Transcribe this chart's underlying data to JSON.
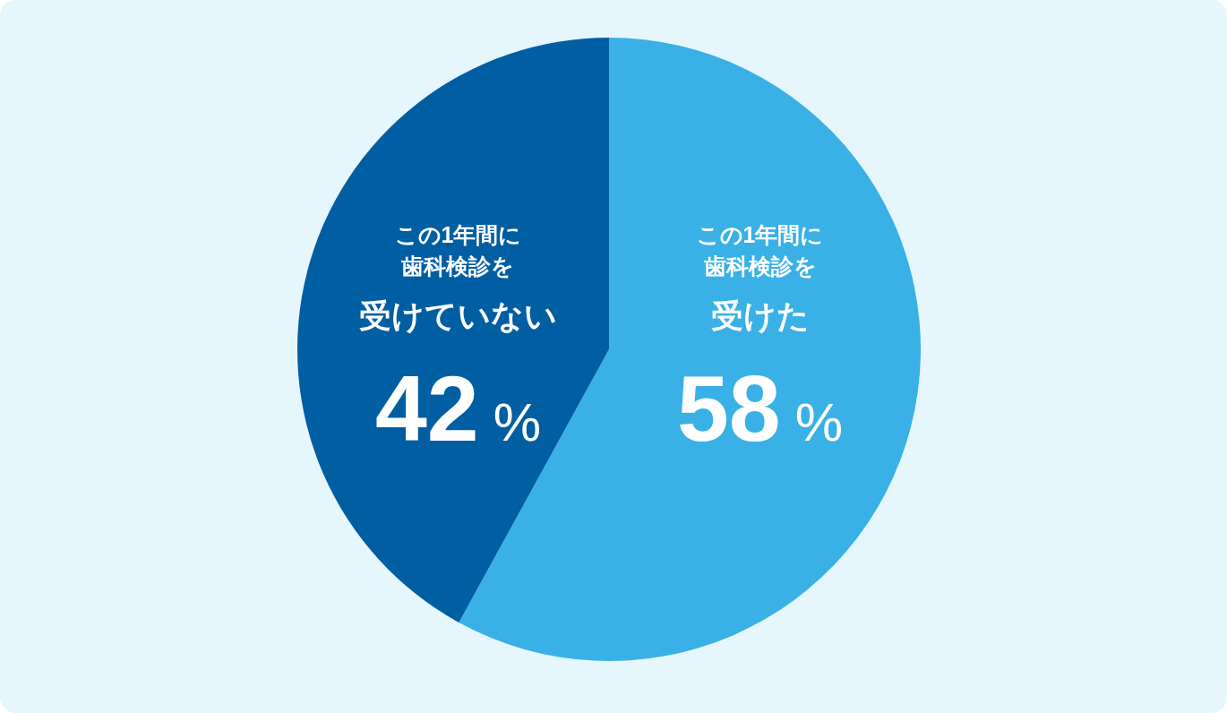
{
  "chart_data": {
    "type": "pie",
    "categories": [
      "この1年間に歯科検診を受けた",
      "この1年間に歯科検診を受けていない"
    ],
    "values": [
      58,
      42
    ],
    "colors": [
      "#39b1e6",
      "#005ea3"
    ],
    "value_labels": [
      "58%",
      "42%"
    ]
  }
}
